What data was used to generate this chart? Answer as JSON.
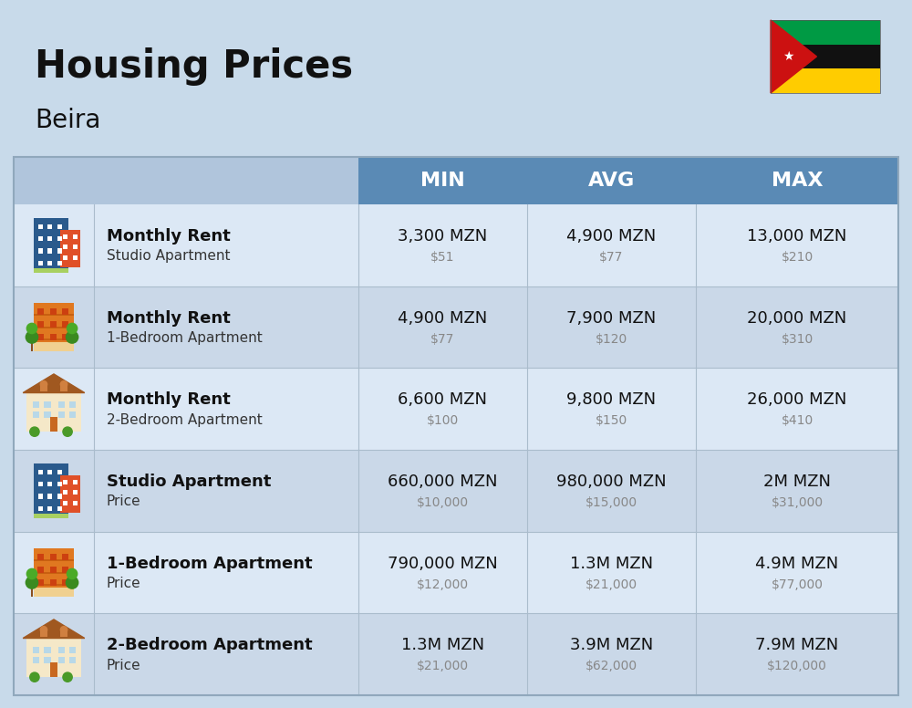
{
  "title": "Housing Prices",
  "subtitle": "Beira",
  "bg_color": "#c8daea",
  "header_bg": "#5a8ab5",
  "header_text_color": "#ffffff",
  "row_bg_light": "#dce8f5",
  "row_bg_dark": "#cad8e8",
  "col_headers": [
    "MIN",
    "AVG",
    "MAX"
  ],
  "rows": [
    {
      "label_bold": "Monthly Rent",
      "label_sub": "Studio Apartment",
      "min_main": "3,300 MZN",
      "min_sub": "$51",
      "avg_main": "4,900 MZN",
      "avg_sub": "$77",
      "max_main": "13,000 MZN",
      "max_sub": "$210",
      "icon_type": "blue_office"
    },
    {
      "label_bold": "Monthly Rent",
      "label_sub": "1-Bedroom Apartment",
      "min_main": "4,900 MZN",
      "min_sub": "$77",
      "avg_main": "7,900 MZN",
      "avg_sub": "$120",
      "max_main": "20,000 MZN",
      "max_sub": "$310",
      "icon_type": "orange_apt"
    },
    {
      "label_bold": "Monthly Rent",
      "label_sub": "2-Bedroom Apartment",
      "min_main": "6,600 MZN",
      "min_sub": "$100",
      "avg_main": "9,800 MZN",
      "avg_sub": "$150",
      "max_main": "26,000 MZN",
      "max_sub": "$410",
      "icon_type": "beige_house"
    },
    {
      "label_bold": "Studio Apartment",
      "label_sub": "Price",
      "min_main": "660,000 MZN",
      "min_sub": "$10,000",
      "avg_main": "980,000 MZN",
      "avg_sub": "$15,000",
      "max_main": "2M MZN",
      "max_sub": "$31,000",
      "icon_type": "blue_office"
    },
    {
      "label_bold": "1-Bedroom Apartment",
      "label_sub": "Price",
      "min_main": "790,000 MZN",
      "min_sub": "$12,000",
      "avg_main": "1.3M MZN",
      "avg_sub": "$21,000",
      "max_main": "4.9M MZN",
      "max_sub": "$77,000",
      "icon_type": "orange_apt"
    },
    {
      "label_bold": "2-Bedroom Apartment",
      "label_sub": "Price",
      "min_main": "1.3M MZN",
      "min_sub": "$21,000",
      "avg_main": "3.9M MZN",
      "avg_sub": "$62,000",
      "max_main": "7.9M MZN",
      "max_sub": "$120,000",
      "icon_type": "beige_house"
    }
  ]
}
